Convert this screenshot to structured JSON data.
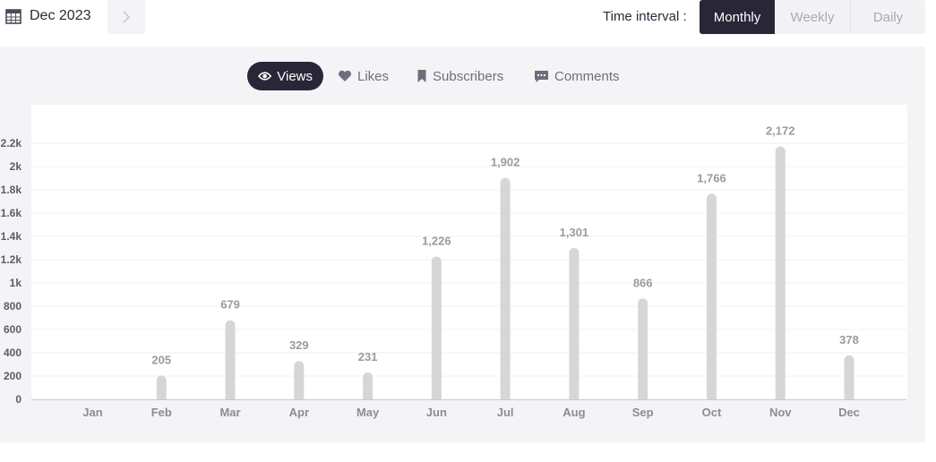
{
  "header": {
    "date_label": "Dec 2023",
    "next_icon": "chevron-right-icon",
    "calendar_icon": "calendar-icon",
    "interval_label": "Time interval :",
    "intervals": [
      "Monthly",
      "Weekly",
      "Daily"
    ],
    "selected_interval": "Monthly"
  },
  "tabs": [
    {
      "label": "Views",
      "icon": "eye-icon",
      "active": true
    },
    {
      "label": "Likes",
      "icon": "heart-icon",
      "active": false
    },
    {
      "label": "Subscribers",
      "icon": "bookmark-icon",
      "active": false
    },
    {
      "label": "Comments",
      "icon": "comment-icon",
      "active": false
    }
  ],
  "colors": {
    "accent": "#272738",
    "bar": "#d6d6d6",
    "panel_bg": "#f4f4f6"
  },
  "chart_data": {
    "type": "bar",
    "categories": [
      "Jan",
      "Feb",
      "Mar",
      "Apr",
      "May",
      "Jun",
      "Jul",
      "Aug",
      "Sep",
      "Oct",
      "Nov",
      "Dec"
    ],
    "values": [
      0,
      205,
      679,
      329,
      231,
      1226,
      1902,
      1301,
      866,
      1766,
      2172,
      378
    ],
    "data_labels": [
      "",
      "205",
      "679",
      "329",
      "231",
      "1,226",
      "1,902",
      "1,301",
      "866",
      "1,766",
      "2,172",
      "378"
    ],
    "y_ticks": [
      0,
      200,
      400,
      600,
      800,
      1000,
      1200,
      1400,
      1600,
      1800,
      2000,
      2200
    ],
    "y_tick_labels": [
      "0",
      "200",
      "400",
      "600",
      "800",
      "1k",
      "1.2k",
      "1.4k",
      "1.6k",
      "1.8k",
      "2k",
      "2.2k"
    ],
    "ylim": [
      0,
      2200
    ],
    "grid": true,
    "title": "",
    "xlabel": "",
    "ylabel": ""
  }
}
